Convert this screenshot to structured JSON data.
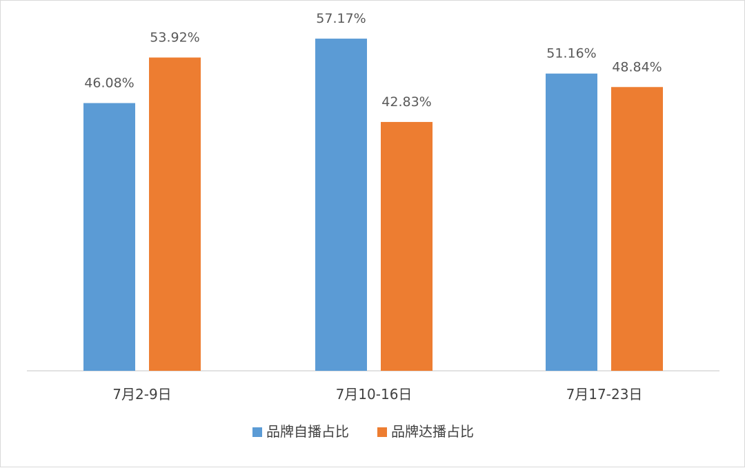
{
  "chart_data": {
    "type": "bar",
    "categories": [
      "7月2-9日",
      "7月10-16日",
      "7月17-23日"
    ],
    "series": [
      {
        "name": "品牌自播占比",
        "values": [
          46.08,
          57.17,
          51.16
        ],
        "labels": [
          "46.08%",
          "57.17%",
          "51.16%"
        ],
        "color": "#5b9bd5"
      },
      {
        "name": "品牌达播占比",
        "values": [
          53.92,
          42.83,
          48.84
        ],
        "labels": [
          "53.92%",
          "42.83%",
          "48.84%"
        ],
        "color": "#ed7d31"
      }
    ],
    "ylim": [
      0,
      60
    ],
    "grid": false,
    "legend_position": "bottom",
    "axis_color": "#d9d9d9"
  }
}
